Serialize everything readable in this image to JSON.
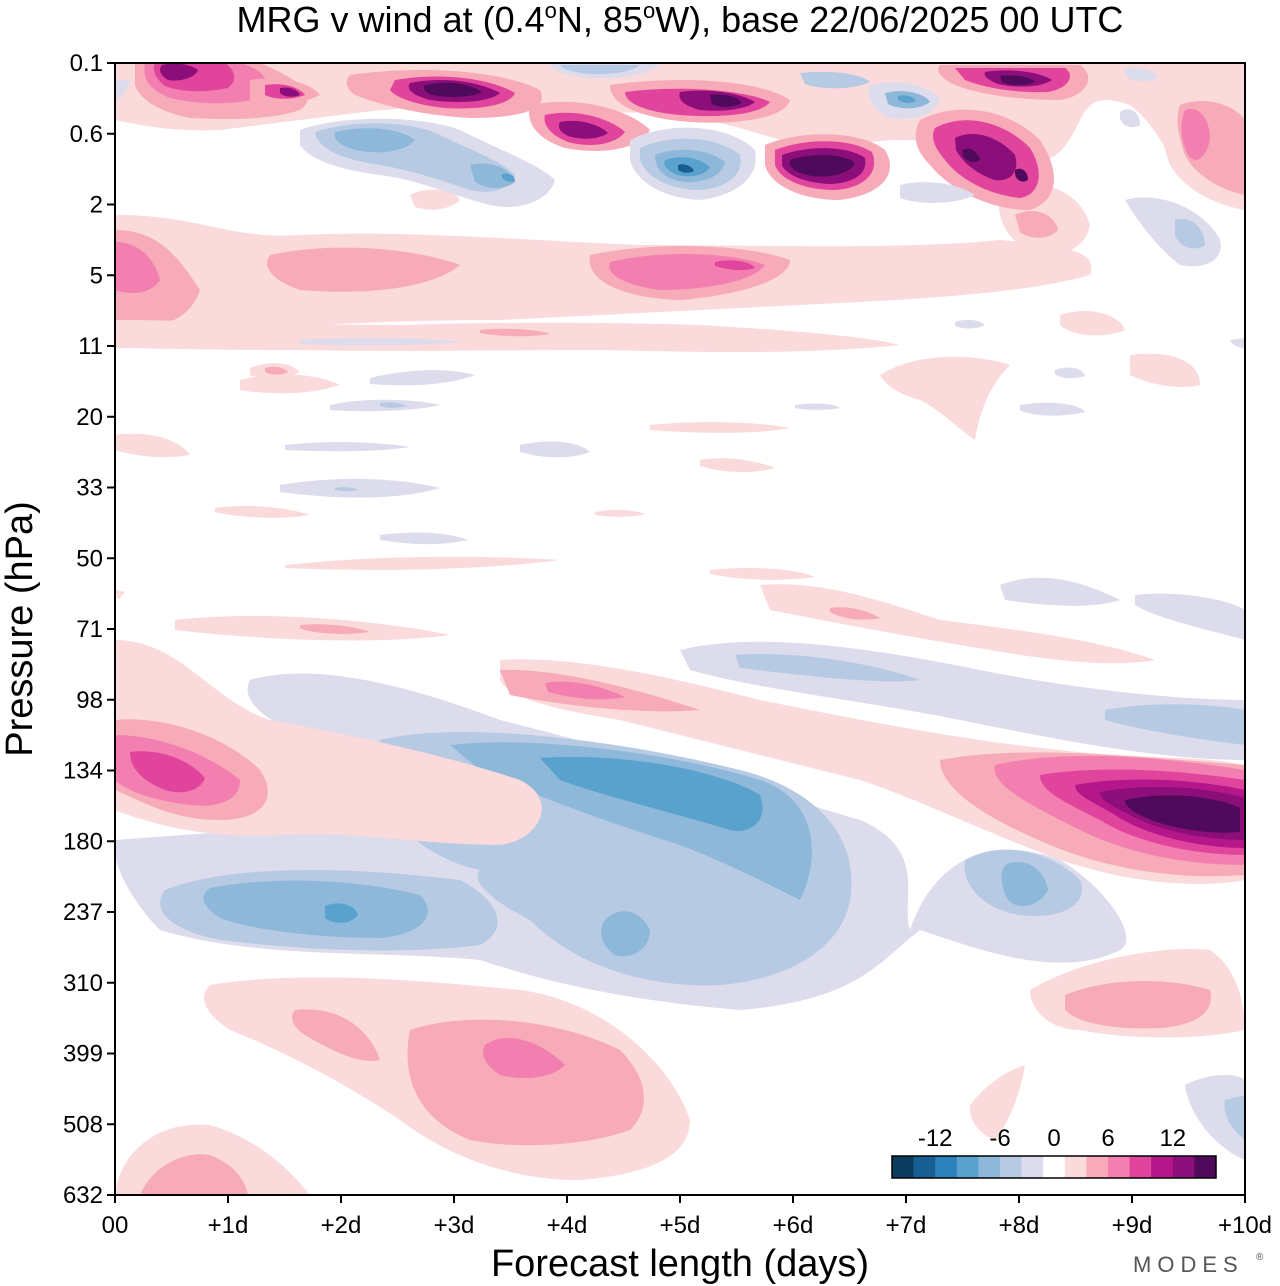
{
  "chart_data": {
    "type": "heatmap",
    "title": {
      "prefix": "MRG v wind at (0.4",
      "lat_suffix": "N, 85",
      "lon_suffix": "W),  base 22/06/2025  00 UTC",
      "degree": "o"
    },
    "xlabel": "Forecast length (days)",
    "ylabel": "Pressure (hPa)",
    "x_ticks": [
      "00",
      "+1d",
      "+2d",
      "+3d",
      "+4d",
      "+5d",
      "+6d",
      "+7d",
      "+8d",
      "+9d",
      "+10d"
    ],
    "x_range_days": [
      0,
      10
    ],
    "y_ticks": [
      "0.1",
      "0.6",
      "2",
      "5",
      "11",
      "20",
      "33",
      "50",
      "71",
      "98",
      "134",
      "180",
      "237",
      "310",
      "399",
      "508",
      "632"
    ],
    "y_scale": "log",
    "y_inverted": true,
    "colorbar": {
      "labels": [
        "-12",
        "-6",
        "0",
        "6",
        "12"
      ],
      "levels": [
        -16,
        -14,
        -12,
        -10,
        -8,
        -6,
        -4,
        -2,
        2,
        4,
        6,
        8,
        10,
        12,
        14,
        16
      ],
      "colors": [
        "#0b3d5e",
        "#175e93",
        "#2c82bb",
        "#5aa2ce",
        "#8db8da",
        "#b7cae3",
        "#dcdcec",
        "#ffffff",
        "#fadadb",
        "#f7aab8",
        "#f27fb0",
        "#e0449c",
        "#b5178a",
        "#8c0e7a",
        "#4f0a5c"
      ]
    },
    "features": [
      {
        "desc": "lower strat/upper trop negative band",
        "day": 3.9,
        "pressure": 140,
        "value": -10
      },
      {
        "desc": "upper trop negative band",
        "day": 2.0,
        "pressure": 235,
        "value": -9
      },
      {
        "desc": "negative lobe near +5d",
        "day": 4.6,
        "pressure": 245,
        "value": -8
      },
      {
        "desc": "negative lobe near +8d",
        "day": 8.0,
        "pressure": 220,
        "value": -8
      },
      {
        "desc": "strong positive late forecast",
        "day": 9.5,
        "pressure": 165,
        "value": 16
      },
      {
        "desc": "positive start of forecast",
        "day": 0.6,
        "pressure": 132,
        "value": 10
      },
      {
        "desc": "positive band near 98 hPa",
        "day": 4.0,
        "pressure": 98,
        "value": 6
      },
      {
        "desc": "positive mid trop",
        "day": 3.6,
        "pressure": 395,
        "value": 8
      },
      {
        "desc": "positive lower trop late",
        "day": 9.5,
        "pressure": 345,
        "value": 4
      },
      {
        "desc": "positive near surface start",
        "day": 0.6,
        "pressure": 620,
        "value": 4
      },
      {
        "desc": "positive band 5 hPa",
        "day": 5.5,
        "pressure": 5,
        "value": 8
      },
      {
        "desc": "upper strat positive start",
        "day": 0.2,
        "pressure": 4.5,
        "value": 8
      },
      {
        "desc": "upper strat positive",
        "day": 6.3,
        "pressure": 1.1,
        "value": 16
      },
      {
        "desc": "upper strat negative",
        "day": 5.0,
        "pressure": 1.2,
        "value": -14
      },
      {
        "desc": "upper strat negative",
        "day": 2.4,
        "pressure": 0.55,
        "value": -8
      },
      {
        "desc": "top level positive",
        "day": 3.0,
        "pressure": 0.2,
        "value": 16
      },
      {
        "desc": "top level positive",
        "day": 0.6,
        "pressure": 0.12,
        "value": 14
      },
      {
        "desc": "top level positive",
        "day": 5.5,
        "pressure": 0.3,
        "value": 14
      },
      {
        "desc": "top level positive",
        "day": 8.0,
        "pressure": 0.15,
        "value": 14
      },
      {
        "desc": "upper strat positive",
        "day": 8.4,
        "pressure": 0.8,
        "value": 12
      },
      {
        "desc": "upper strat positive",
        "day": 4.0,
        "pressure": 0.55,
        "value": 14
      },
      {
        "desc": "top negative",
        "day": 7.0,
        "pressure": 0.25,
        "value": -12
      }
    ]
  },
  "brand": "MODES"
}
